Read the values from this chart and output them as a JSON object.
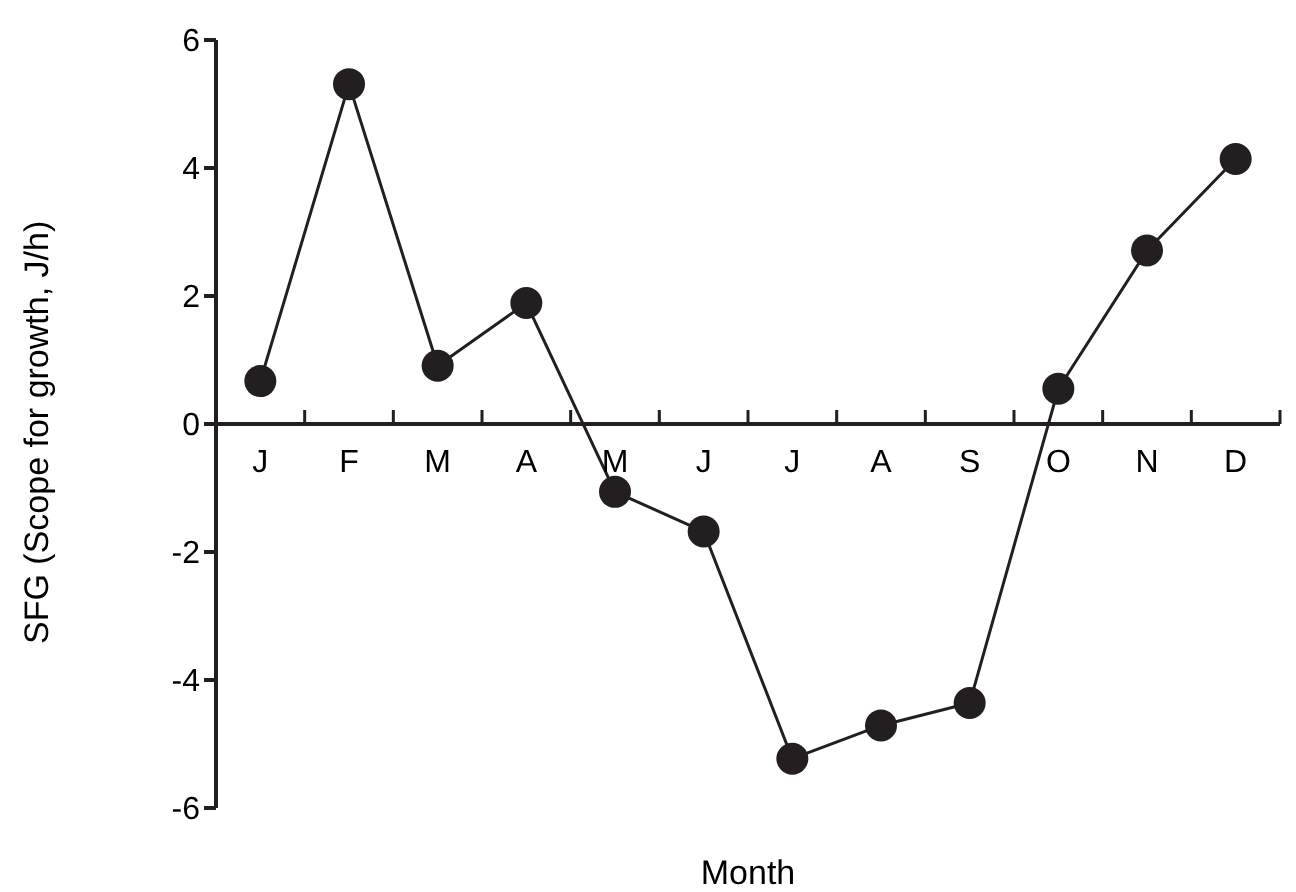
{
  "chart_data": {
    "type": "line",
    "xlabel": "Month",
    "ylabel": "SFG (Scope for growth, J/h)",
    "categories": [
      "J",
      "F",
      "M",
      "A",
      "M",
      "J",
      "J",
      "A",
      "S",
      "O",
      "N",
      "D"
    ],
    "values": [
      0.67,
      5.31,
      0.91,
      1.89,
      -1.06,
      -1.68,
      -5.23,
      -4.71,
      -4.36,
      0.55,
      2.71,
      4.14
    ],
    "color": "#231f20",
    "marker": "circle",
    "ylim": [
      -6,
      6
    ],
    "yticks": [
      -6,
      -4,
      -2,
      0,
      2,
      4,
      6
    ]
  }
}
